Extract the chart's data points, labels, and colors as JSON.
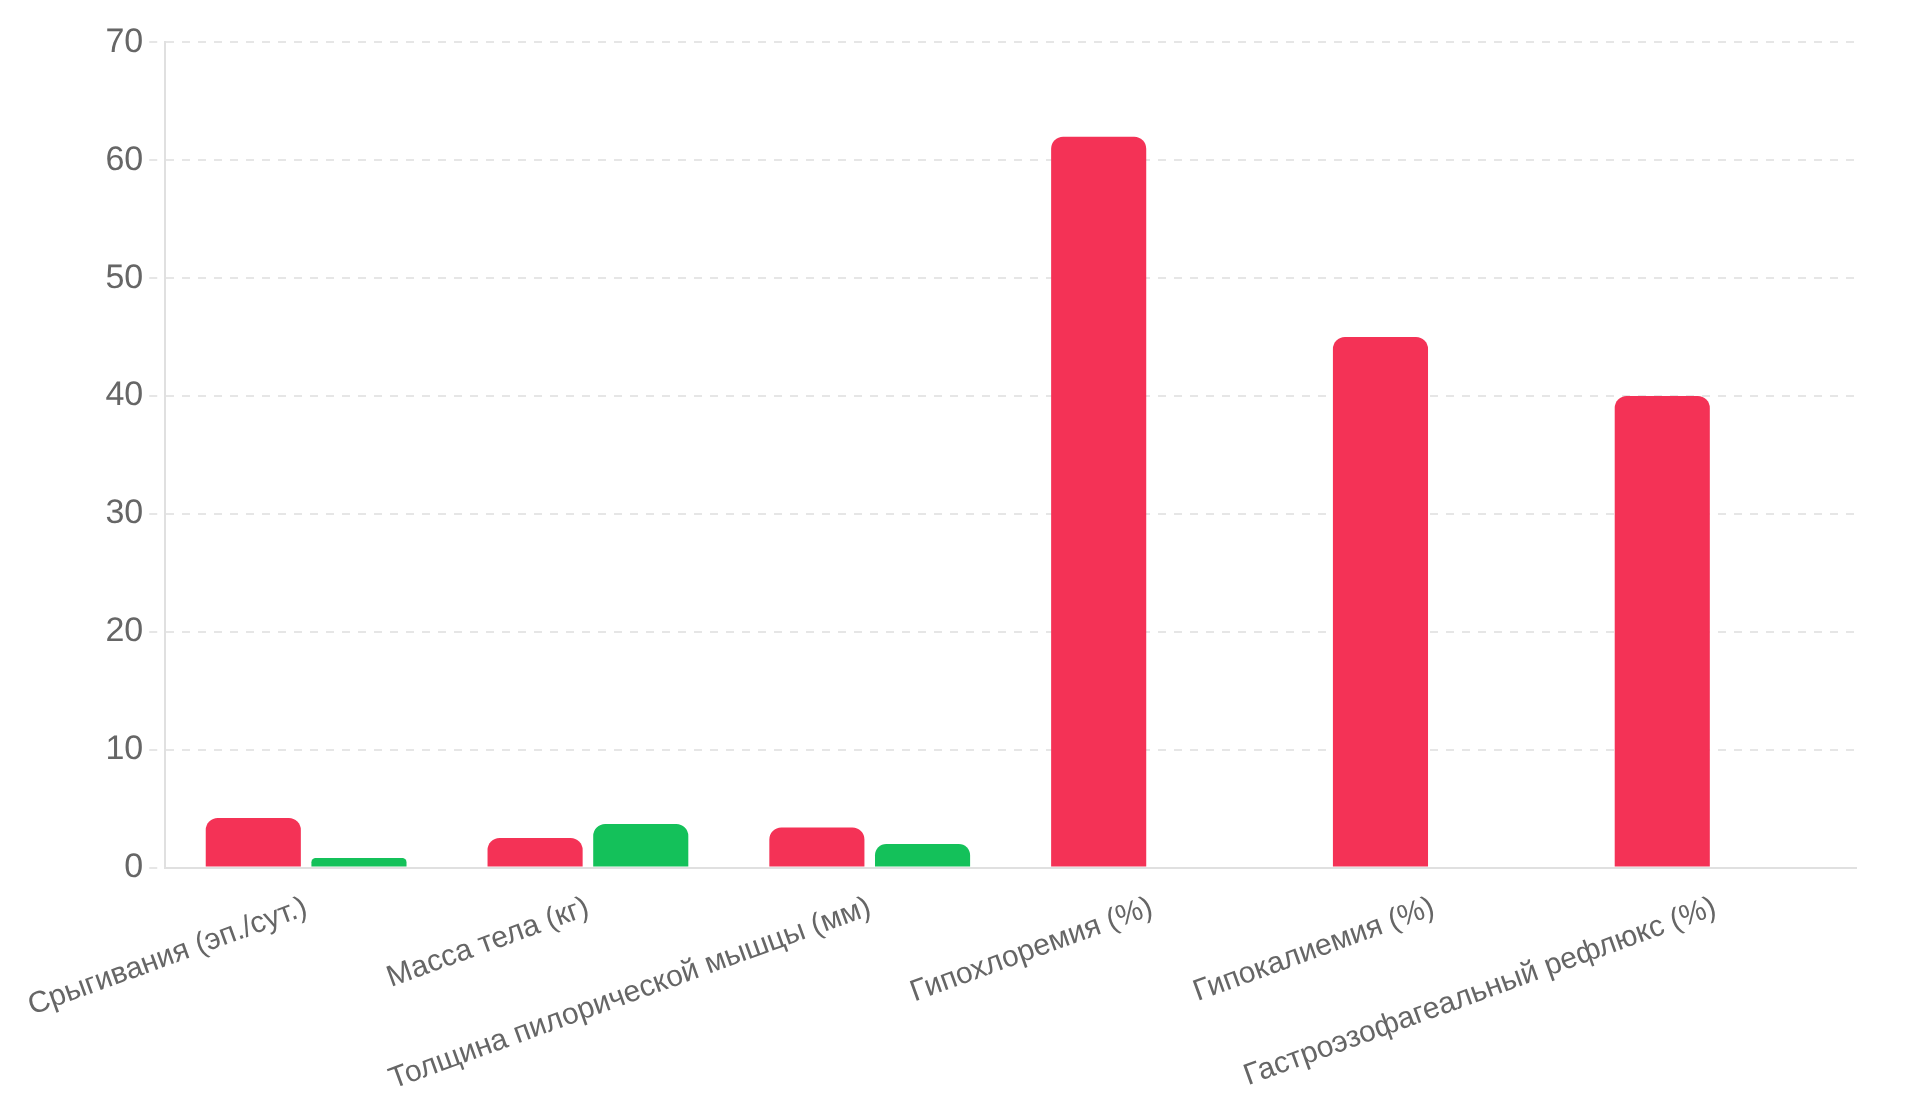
{
  "chart_data": {
    "type": "bar",
    "categories": [
      "Срыгивания (эп./сут.)",
      "Масса тела (кг)",
      "Толщина пилорической мышцы (мм)",
      "Гипохлоремия (%)",
      "Гипокалиемия (%)",
      "Гастроэзофагеальный рефлюкс (%)"
    ],
    "series": [
      {
        "color": "#f43256",
        "values": [
          4.2,
          2.5,
          3.4,
          62,
          45,
          40
        ]
      },
      {
        "color": "#14c15a",
        "values": [
          0.8,
          3.7,
          2.0,
          null,
          null,
          null
        ]
      }
    ],
    "ylim": [
      0,
      70
    ],
    "yticks": [
      0,
      10,
      20,
      30,
      40,
      50,
      60,
      70
    ],
    "grid": "y",
    "legend": false
  }
}
